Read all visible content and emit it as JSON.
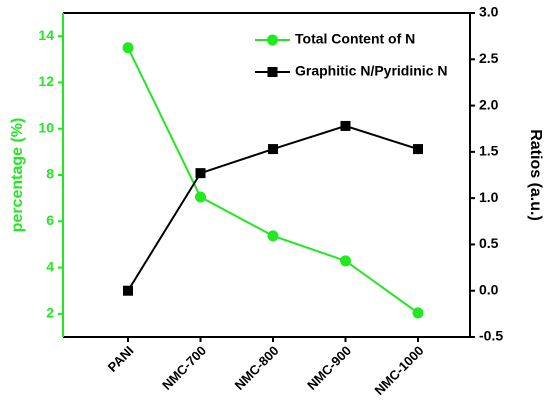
{
  "chart_data": {
    "type": "line",
    "categories": [
      "PANI",
      "NMC-700",
      "NMC-800",
      "NMC-900",
      "NMC-1000"
    ],
    "series": [
      {
        "name": "Total Content of N",
        "color": "#22e822",
        "marker": "circle",
        "values": [
          13.5,
          7.05,
          5.37,
          4.29,
          2.04
        ]
      },
      {
        "name": "Graphitic N/Pyridinic N",
        "color": "#000000",
        "marker": "square",
        "axis": "y2",
        "values": [
          0,
          1.27,
          1.53,
          1.78,
          1.53
        ]
      }
    ],
    "ylabel": "percentage (%)",
    "ylabel_color": "#22e822",
    "y2label": "Ratios (a.u.)",
    "ylim": [
      1,
      15
    ],
    "yticks": [
      2,
      4,
      6,
      8,
      10,
      12,
      14
    ],
    "y2lim": [
      -0.5,
      3.0
    ],
    "y2ticks": [
      -0.5,
      {
        "value": 0,
        "label": "0.0"
      },
      0.5,
      {
        "value": 1,
        "label": "1.0"
      },
      1.5,
      {
        "value": 2,
        "label": "2.0"
      },
      2.5,
      {
        "value": 3,
        "label": "3.0"
      }
    ],
    "legend": "top"
  }
}
